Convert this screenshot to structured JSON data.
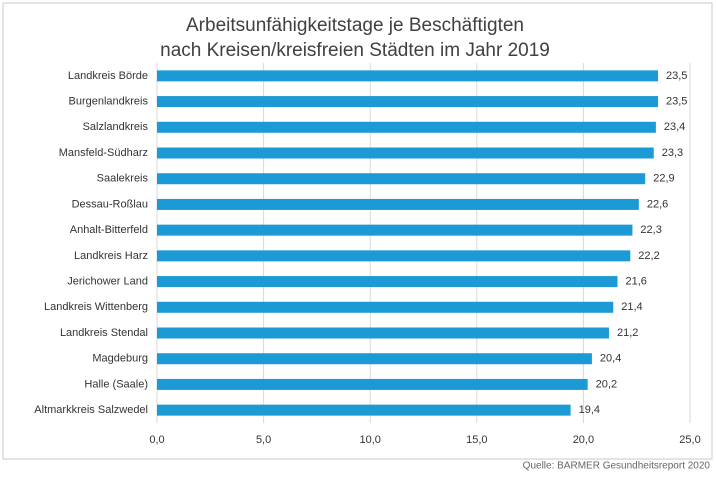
{
  "chart_data": {
    "type": "barh",
    "title": "Arbeitsunfähigkeitstage je Beschäftigten",
    "subtitle": "nach Kreisen/kreisfreien Städten im Jahr 2019",
    "source": "Quelle: BARMER Gesundheitsreport 2020",
    "categories": [
      "Landkreis Börde",
      "Burgenlandkreis",
      "Salzlandkreis",
      "Mansfeld-Südharz",
      "Saalekreis",
      "Dessau-Roßlau",
      "Anhalt-Bitterfeld",
      "Landkreis Harz",
      "Jerichower Land",
      "Landkreis Wittenberg",
      "Landkreis Stendal",
      "Magdeburg",
      "Halle (Saale)",
      "Altmarkkreis Salzwedel"
    ],
    "values": [
      23.5,
      23.5,
      23.4,
      23.3,
      22.9,
      22.6,
      22.3,
      22.2,
      21.6,
      21.4,
      21.2,
      20.4,
      20.2,
      19.4
    ],
    "value_labels": [
      "23,5",
      "23,5",
      "23,4",
      "23,3",
      "22,9",
      "22,6",
      "22,3",
      "22,2",
      "21,6",
      "21,4",
      "21,2",
      "20,4",
      "20,2",
      "19,4"
    ],
    "color": "#1b9ad6",
    "xlim": [
      0,
      25
    ],
    "xticks": [
      {
        "value": 0,
        "label": "0,0"
      },
      {
        "value": 5,
        "label": "5,0"
      },
      {
        "value": 10,
        "label": "10,0"
      },
      {
        "value": 15,
        "label": "15,0"
      },
      {
        "value": 20,
        "label": "20,0"
      },
      {
        "value": 25,
        "label": "25,0"
      }
    ],
    "grid": true
  }
}
